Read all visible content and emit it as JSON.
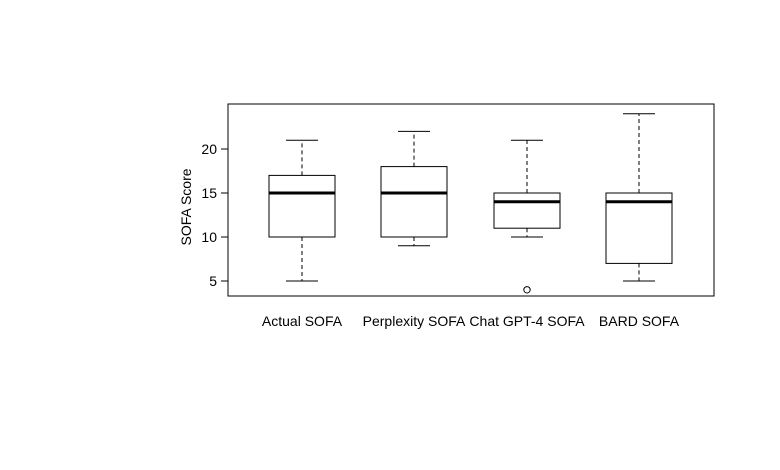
{
  "chart_data": {
    "type": "boxplot",
    "title": "",
    "xlabel": "",
    "ylabel": "SOFA Score",
    "ylim": [
      3,
      24.5
    ],
    "yticks": [
      5,
      10,
      15,
      20
    ],
    "ytick_labels": [
      "5",
      "10",
      "15",
      "20"
    ],
    "grid": false,
    "legend": "none",
    "categories": [
      "Actual SOFA",
      "Perplexity SOFA",
      "Chat GPT-4 SOFA",
      "BARD SOFA"
    ],
    "boxes": [
      {
        "category": "Actual SOFA",
        "whisker_low": 5,
        "q1": 10,
        "median": 15,
        "q3": 17,
        "whisker_high": 21,
        "outliers": []
      },
      {
        "category": "Perplexity SOFA",
        "whisker_low": 9,
        "q1": 10,
        "median": 15,
        "q3": 18,
        "whisker_high": 22,
        "outliers": []
      },
      {
        "category": "Chat GPT-4 SOFA",
        "whisker_low": 10,
        "q1": 11,
        "median": 14,
        "q3": 15,
        "whisker_high": 21,
        "outliers": [
          4
        ]
      },
      {
        "category": "BARD SOFA",
        "whisker_low": 5,
        "q1": 7,
        "median": 14,
        "q3": 15,
        "whisker_high": 24,
        "outliers": []
      }
    ],
    "colors": {
      "box_fill": "#ffffff",
      "stroke": "#000000"
    }
  }
}
